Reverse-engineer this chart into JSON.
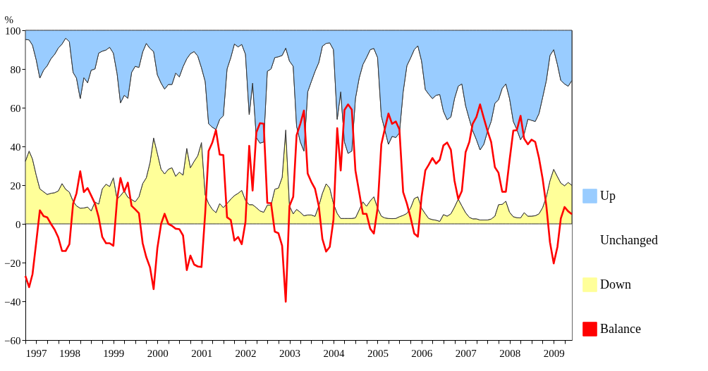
{
  "chart_data": {
    "type": "area",
    "stacked": true,
    "ylabel": "%",
    "legend": "right",
    "grid": false,
    "ylim": [
      -60,
      100
    ],
    "yticks": [
      -60,
      -40,
      -20,
      0,
      20,
      40,
      60,
      80,
      100
    ],
    "xlim": [
      "1997-01",
      "2009-06"
    ],
    "xticks": [
      "1997",
      {
        "value": "1997-04",
        "label": null
      },
      {
        "value": "1997-07",
        "label": null
      },
      {
        "value": "1997-10",
        "label": null
      },
      "1998",
      {
        "value": "1998-04",
        "label": null
      },
      {
        "value": "1998-07",
        "label": null
      },
      {
        "value": "1998-10",
        "label": null
      },
      "1999",
      {
        "value": "1999-04",
        "label": null
      },
      {
        "value": "1999-07",
        "label": null
      },
      {
        "value": "1999-10",
        "label": null
      },
      "2000",
      {
        "value": "2000-04",
        "label": null
      },
      {
        "value": "2000-07",
        "label": null
      },
      {
        "value": "2000-10",
        "label": null
      },
      "2001",
      {
        "value": "2001-04",
        "label": null
      },
      {
        "value": "2001-07",
        "label": null
      },
      {
        "value": "2001-10",
        "label": null
      },
      "2002",
      {
        "value": "2002-04",
        "label": null
      },
      {
        "value": "2002-07",
        "label": null
      },
      {
        "value": "2002-10",
        "label": null
      },
      "2003",
      {
        "value": "2003-04",
        "label": null
      },
      {
        "value": "2003-07",
        "label": null
      },
      {
        "value": "2003-10",
        "label": null
      },
      "2004",
      {
        "value": "2004-04",
        "label": null
      },
      {
        "value": "2004-07",
        "label": null
      },
      {
        "value": "2004-10",
        "label": null
      },
      "2005",
      {
        "value": "2005-04",
        "label": null
      },
      {
        "value": "2005-07",
        "label": null
      },
      {
        "value": "2005-10",
        "label": null
      },
      "2006",
      {
        "value": "2006-04",
        "label": null
      },
      {
        "value": "2006-07",
        "label": null
      },
      {
        "value": "2006-10",
        "label": null
      },
      "2007",
      {
        "value": "2007-04",
        "label": null
      },
      {
        "value": "2007-07",
        "label": null
      },
      {
        "value": "2007-10",
        "label": null
      },
      "2008",
      {
        "value": "2008-04",
        "label": null
      },
      {
        "value": "2008-07",
        "label": null
      },
      {
        "value": "2008-10",
        "label": null
      },
      "2009",
      {
        "value": "2009-04",
        "label": null
      }
    ],
    "x": [
      "1997-01",
      "1997-02",
      "1997-03",
      "1997-04",
      "1997-05",
      "1997-06",
      "1997-07",
      "1997-08",
      "1997-09",
      "1997-10",
      "1997-11",
      "1997-12",
      "1998-01",
      "1998-02",
      "1998-03",
      "1998-04",
      "1998-05",
      "1998-06",
      "1998-07",
      "1998-08",
      "1998-09",
      "1998-10",
      "1998-11",
      "1998-12",
      "1999-01",
      "1999-02",
      "1999-03",
      "1999-04",
      "1999-05",
      "1999-06",
      "1999-07",
      "1999-08",
      "1999-09",
      "1999-10",
      "1999-11",
      "1999-12",
      "2000-01",
      "2000-02",
      "2000-03",
      "2000-04",
      "2000-05",
      "2000-06",
      "2000-07",
      "2000-08",
      "2000-09",
      "2000-10",
      "2000-11",
      "2000-12",
      "2001-01",
      "2001-02",
      "2001-03",
      "2001-04",
      "2001-05",
      "2001-06",
      "2001-07",
      "2001-08",
      "2001-09",
      "2001-10",
      "2001-11",
      "2001-12",
      "2002-01",
      "2002-02",
      "2002-03",
      "2002-04",
      "2002-05",
      "2002-06",
      "2002-07",
      "2002-08",
      "2002-09",
      "2002-10",
      "2002-11",
      "2002-12",
      "2003-01",
      "2003-02",
      "2003-03",
      "2003-04",
      "2003-05",
      "2003-06",
      "2003-07",
      "2003-08",
      "2003-09",
      "2003-10",
      "2003-11",
      "2003-12",
      "2004-01",
      "2004-02",
      "2004-03",
      "2004-04",
      "2004-05",
      "2004-06",
      "2004-07",
      "2004-08",
      "2004-09",
      "2004-10",
      "2004-11",
      "2004-12",
      "2005-01",
      "2005-02",
      "2005-03",
      "2005-04",
      "2005-05",
      "2005-06",
      "2005-07",
      "2005-08",
      "2005-09",
      "2005-10",
      "2005-11",
      "2005-12",
      "2006-01",
      "2006-02",
      "2006-03",
      "2006-04",
      "2006-05",
      "2006-06",
      "2006-07",
      "2006-08",
      "2006-09",
      "2006-10",
      "2006-11",
      "2006-12",
      "2007-01",
      "2007-02",
      "2007-03",
      "2007-04",
      "2007-05",
      "2007-06",
      "2007-07",
      "2007-08",
      "2007-09",
      "2007-10",
      "2007-11",
      "2007-12",
      "2008-01",
      "2008-02",
      "2008-03",
      "2008-04",
      "2008-05",
      "2008-06",
      "2008-07",
      "2008-08",
      "2008-09",
      "2008-10",
      "2008-11",
      "2008-12",
      "2009-01",
      "2009-02",
      "2009-03",
      "2009-04",
      "2009-05",
      "2009-06"
    ],
    "series": [
      {
        "name": "Down",
        "color": "#ffff99",
        "values": [
          32.3,
          37.6,
          33.5,
          25.2,
          18.1,
          16.6,
          15.2,
          15.8,
          16.1,
          17.0,
          20.8,
          17.9,
          16.4,
          11.7,
          9.3,
          8.1,
          8.2,
          8.7,
          6.7,
          11.3,
          10.2,
          18.1,
          20.5,
          19.3,
          23.8,
          12.8,
          14.6,
          17.0,
          13.8,
          12.6,
          11.4,
          14.0,
          20.8,
          23.8,
          31.7,
          44.4,
          36.4,
          28.2,
          25.8,
          28.2,
          29.0,
          24.6,
          26.7,
          25.2,
          39.0,
          29.0,
          32.3,
          35.2,
          42.0,
          15.0,
          10.5,
          7.5,
          5.8,
          10.5,
          8.4,
          10.5,
          12.8,
          14.6,
          15.8,
          17.3,
          12.2,
          9.9,
          9.9,
          8.4,
          6.7,
          6.0,
          9.7,
          9.7,
          17.9,
          18.5,
          24.0,
          48.5,
          9.3,
          5.2,
          7.5,
          6.0,
          4.2,
          4.6,
          4.6,
          3.9,
          9.3,
          15.8,
          20.7,
          18.5,
          10.5,
          5.4,
          2.8,
          2.8,
          2.8,
          2.8,
          3.1,
          7.2,
          11.4,
          9.1,
          11.9,
          14.0,
          8.1,
          4.0,
          3.1,
          2.8,
          2.7,
          2.8,
          3.7,
          4.4,
          5.4,
          8.1,
          13.1,
          14.0,
          8.1,
          5.2,
          2.8,
          2.2,
          1.9,
          1.3,
          4.8,
          4.0,
          5.2,
          8.7,
          12.8,
          9.3,
          5.8,
          3.4,
          2.6,
          2.6,
          2.0,
          2.0,
          2.0,
          2.5,
          4.0,
          9.9,
          10.1,
          11.7,
          6.0,
          3.7,
          3.2,
          3.1,
          5.8,
          4.0,
          4.0,
          4.2,
          5.2,
          8.4,
          14.0,
          22.3,
          28.2,
          24.4,
          21.1,
          19.7,
          21.4,
          19.9
        ]
      },
      {
        "name": "Unchanged",
        "color": "#ffffff",
        "values": [
          63.0,
          57.4,
          58.8,
          59.5,
          57.2,
          62.8,
          66.5,
          69.5,
          71.5,
          73.8,
          72.1,
          78.0,
          77.7,
          66.5,
          66.0,
          56.6,
          67.3,
          64.2,
          72.7,
          68.7,
          78.0,
          71.1,
          69.3,
          71.9,
          64.4,
          64.8,
          47.9,
          49.4,
          51.1,
          65.6,
          70.0,
          66.8,
          68.0,
          69.4,
          58.9,
          44.6,
          40.6,
          44.5,
          43.8,
          43.8,
          43.0,
          53.3,
          49.2,
          56.0,
          46.3,
          58.9,
          56.7,
          51.5,
          38.6,
          58.5,
          41.2,
          42.4,
          43.0,
          43.5,
          47.4,
          69.5,
          73.1,
          78.3,
          75.6,
          75.4,
          75.4,
          46.5,
          62.8,
          36.2,
          35.0,
          36.3,
          69.1,
          70.3,
          68.0,
          67.8,
          63.0,
          42.3,
          74.8,
          76.2,
          43.0,
          36.3,
          33.4,
          63.6,
          68.9,
          74.9,
          74.0,
          76.0,
          72.5,
          75.0,
          79.5,
          48.6,
          65.4,
          39.5,
          33.6,
          34.8,
          61.6,
          68.1,
          70.9,
          76.8,
          78.1,
          76.6,
          77.8,
          51.8,
          45.7,
          38.3,
          42.5,
          41.8,
          43.3,
          63.8,
          76.3,
          77.5,
          76.9,
          78.0,
          76.0,
          64.2,
          64.2,
          62.5,
          64.5,
          65.5,
          53.4,
          49.8,
          50.0,
          56.0,
          58.3,
          63.0,
          55.3,
          50.7,
          45.6,
          40.9,
          36.2,
          39.1,
          45.6,
          50.4,
          58.3,
          54.2,
          59.9,
          60.6,
          58.7,
          49.2,
          45.6,
          40.4,
          40.7,
          50.1,
          49.5,
          48.7,
          51.8,
          56.9,
          60.1,
          64.7,
          61.8,
          57.9,
          53.0,
          52.6,
          49.7,
          54.2
        ]
      },
      {
        "name": "Up",
        "color": "#99ccff",
        "values": [
          4.7,
          5.0,
          7.7,
          15.3,
          24.7,
          20.6,
          18.3,
          14.7,
          12.4,
          9.2,
          7.1,
          4.1,
          5.9,
          21.8,
          24.7,
          35.3,
          24.5,
          27.1,
          20.6,
          20.0,
          11.8,
          10.8,
          10.2,
          8.8,
          11.8,
          22.4,
          37.5,
          33.6,
          35.1,
          21.8,
          18.6,
          19.2,
          11.2,
          6.8,
          9.4,
          11.0,
          23.0,
          27.3,
          30.4,
          28.0,
          28.0,
          22.1,
          24.1,
          18.8,
          14.7,
          12.1,
          11.0,
          13.3,
          19.4,
          26.5,
          48.3,
          50.1,
          51.2,
          46.0,
          44.2,
          20.0,
          14.1,
          7.1,
          8.6,
          7.3,
          12.4,
          43.6,
          27.3,
          55.4,
          58.3,
          57.7,
          21.2,
          20.0,
          14.1,
          13.7,
          13.0,
          9.2,
          15.9,
          18.6,
          49.5,
          57.7,
          62.4,
          31.8,
          26.5,
          21.2,
          16.7,
          8.2,
          6.8,
          6.5,
          10.0,
          46.0,
          31.8,
          57.7,
          63.6,
          62.4,
          35.3,
          24.7,
          17.7,
          14.1,
          10.0,
          9.4,
          14.1,
          44.2,
          51.2,
          58.9,
          54.8,
          55.4,
          53.0,
          31.8,
          18.3,
          14.4,
          10.0,
          8.0,
          15.9,
          30.6,
          33.0,
          35.3,
          33.6,
          33.2,
          41.8,
          46.2,
          44.8,
          35.3,
          28.9,
          27.7,
          38.9,
          45.9,
          51.8,
          56.5,
          61.8,
          58.9,
          52.4,
          47.1,
          37.7,
          35.9,
          30.0,
          27.7,
          35.3,
          47.1,
          51.2,
          56.5,
          53.5,
          45.9,
          46.5,
          47.1,
          43.0,
          34.7,
          25.9,
          13.0,
          10.0,
          17.7,
          25.9,
          27.7,
          28.9,
          25.9
        ]
      },
      {
        "name": "Balance",
        "type": "line",
        "color": "#ff0000",
        "values": [
          -26.9,
          -32.7,
          -26,
          -9.5,
          7,
          4,
          3.4,
          0,
          -3,
          -7,
          -14,
          -14,
          -10.5,
          10.5,
          15.8,
          27.2,
          16.4,
          18.5,
          14.6,
          10.5,
          3.4,
          -6.8,
          -10,
          -10,
          -11.3,
          12.8,
          23.7,
          16.6,
          21.3,
          9.3,
          7.5,
          5.5,
          -10,
          -17.2,
          -22.5,
          -33.7,
          -12.5,
          0,
          5.2,
          0,
          -1,
          -2.5,
          -2.7,
          -6,
          -23.9,
          -16.4,
          -21,
          -22,
          -22.3,
          5.8,
          37.6,
          42,
          48.5,
          35.8,
          35.5,
          3.4,
          2,
          -8.6,
          -6.8,
          -10.5,
          1,
          40.3,
          17.2,
          47.2,
          52,
          51.7,
          10.8,
          10.7,
          -4,
          -4.8,
          -11.3,
          -40.2,
          9.3,
          14,
          45.8,
          51.7,
          58.5,
          26,
          21.7,
          18.1,
          9.3,
          -7.8,
          -14.3,
          -11.9,
          2.2,
          49.4,
          27.6,
          58.8,
          61.7,
          59,
          27.6,
          16.4,
          5.2,
          5.2,
          -2.5,
          -5,
          8.1,
          41.1,
          48.8,
          57,
          51.7,
          52.9,
          48.8,
          16.4,
          10.5,
          3.4,
          -5,
          -6.6,
          14,
          27.6,
          30.5,
          34,
          31.1,
          33.1,
          40.5,
          42,
          38.2,
          22.3,
          12.8,
          17,
          37,
          42.3,
          51.7,
          55.2,
          61.7,
          54.7,
          48.2,
          42.3,
          29.3,
          26.4,
          16.6,
          16.6,
          32.9,
          48.2,
          48.4,
          55.8,
          44,
          41.1,
          43.5,
          42.3,
          34,
          23.4,
          9.3,
          -9.5,
          -20.4,
          -11.9,
          2.8,
          8.7,
          6.5,
          5
        ]
      }
    ]
  }
}
